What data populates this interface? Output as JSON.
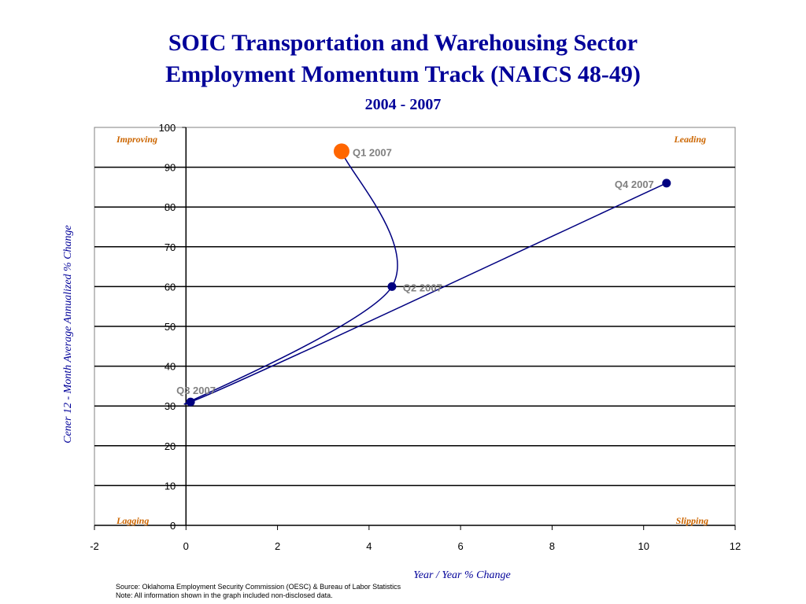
{
  "header": {
    "title_line1": "SOIC Transportation and Warehousing Sector",
    "title_line2": "Employment Momentum Track (NAICS 48-49)",
    "subtitle": "2004 - 2007"
  },
  "footer": {
    "source": "Source:  Oklahoma Employment Security Commission (OESC) & Bureau of Labor Statistics",
    "note": "Note: All information shown in the graph included non-disclosed data."
  },
  "chart_data": {
    "type": "line",
    "title": "SOIC Transportation and Warehousing Sector Employment Momentum Track (NAICS 48-49)",
    "subtitle": "2004 - 2007",
    "xlabel": "Year / Year % Change",
    "ylabel": "Cener 12 - Month Average Annualized % Change",
    "xlim": [
      -2,
      12
    ],
    "ylim": [
      0,
      100
    ],
    "xticks": [
      -2,
      0,
      2,
      4,
      6,
      8,
      10,
      12
    ],
    "yticks": [
      0,
      10,
      20,
      30,
      40,
      50,
      60,
      70,
      80,
      90,
      100
    ],
    "grid": "horizontal",
    "quadrants": [
      {
        "label": "Improving",
        "position": "top-left"
      },
      {
        "label": "Leading",
        "position": "top-right"
      },
      {
        "label": "Lagging",
        "position": "bottom-left"
      },
      {
        "label": "Slipping",
        "position": "bottom-right"
      }
    ],
    "series": [
      {
        "points": [
          {
            "label": "Q1 2007",
            "x": 3.4,
            "y": 94,
            "highlight": true
          },
          {
            "label": "Q2 2007",
            "x": 4.5,
            "y": 60
          },
          {
            "label": "Q3 2007",
            "x": 0.1,
            "y": 31
          },
          {
            "label": "Q4 2007",
            "x": 10.5,
            "y": 86
          }
        ]
      }
    ],
    "colors": {
      "line": "#000080",
      "marker": "#000080",
      "highlight_marker": "#ff6600",
      "quadrant_label": "#cc6600",
      "axis_label": "#000099",
      "point_label": "#808080"
    }
  }
}
